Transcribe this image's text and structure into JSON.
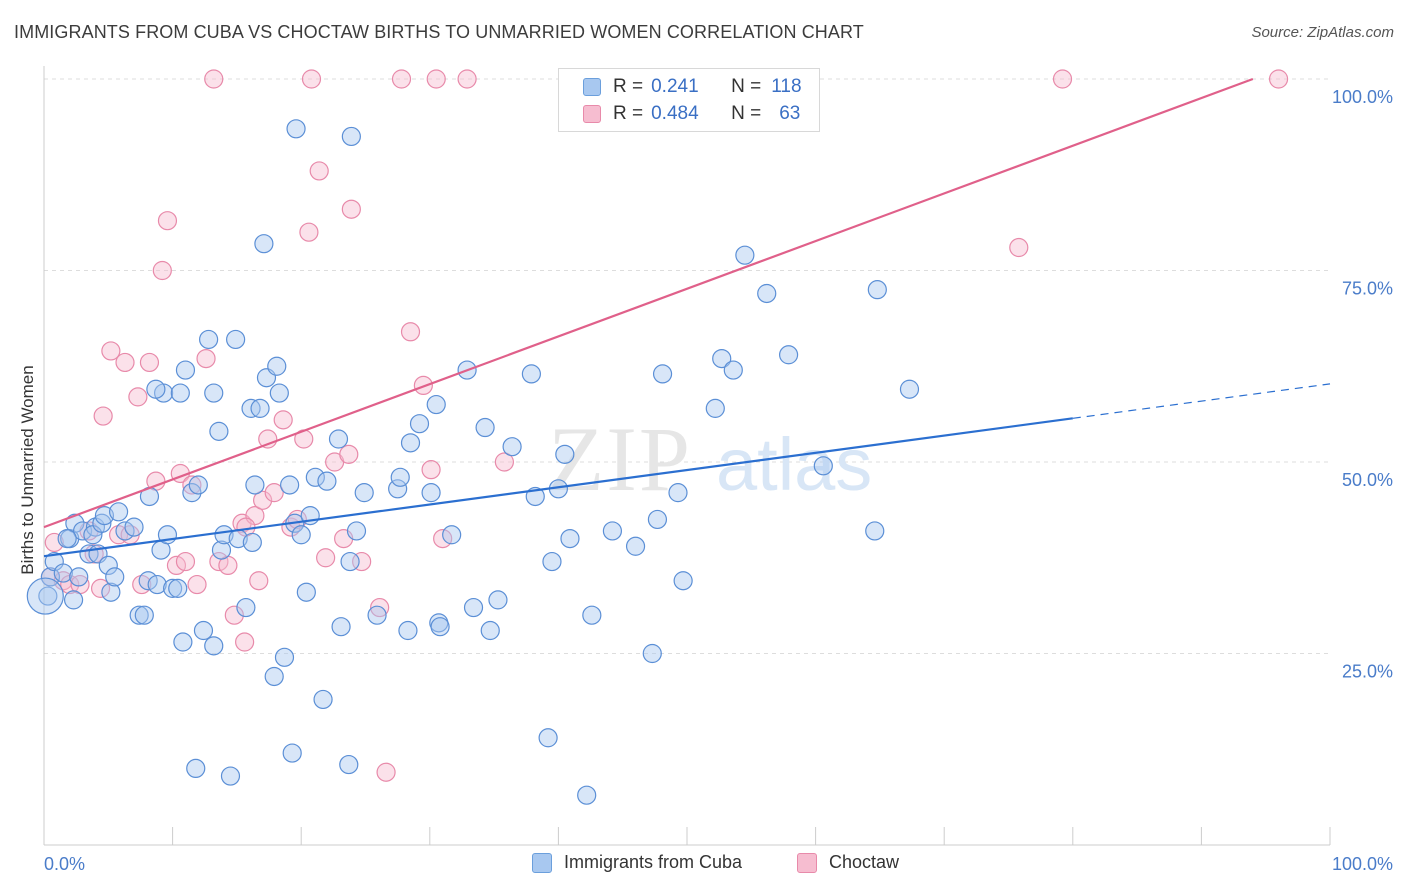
{
  "header": {
    "title": "IMMIGRANTS FROM CUBA VS CHOCTAW BIRTHS TO UNMARRIED WOMEN CORRELATION CHART",
    "source": "Source: ZipAtlas.com"
  },
  "watermark": {
    "text_zip": "ZIP",
    "text_atlas": "atlas"
  },
  "legend": {
    "r_label": "R =",
    "n_label": "N =",
    "rows": [
      {
        "r": "0.241",
        "n": "118",
        "color": "#a8c8f0",
        "border": "#6b9fdc"
      },
      {
        "r": "0.484",
        "n": "63",
        "color": "#f6bdd0",
        "border": "#e88aaa"
      }
    ]
  },
  "colors": {
    "blue_fill": "#a8c8f0",
    "blue_stroke": "#5b8fd6",
    "blue_line": "#2b6fd0",
    "pink_fill": "#f6bdd0",
    "pink_stroke": "#e88aaa",
    "pink_line": "#e0608a",
    "tick_label": "#4a7cc9",
    "grid": "#dddddd"
  },
  "chart_data": {
    "type": "scatter",
    "title": "IMMIGRANTS FROM CUBA VS CHOCTAW BIRTHS TO UNMARRIED WOMEN CORRELATION CHART",
    "xlabel": "",
    "ylabel": "Births to Unmarried Women",
    "xlim": [
      0,
      100
    ],
    "ylim": [
      0,
      100
    ],
    "x_tick_labels": [
      "0.0%",
      "100.0%"
    ],
    "y_tick_labels": [
      "25.0%",
      "50.0%",
      "75.0%",
      "100.0%"
    ],
    "y_ticks": [
      25,
      50,
      75,
      100
    ],
    "grid": true,
    "legend_position": "top-center",
    "series": [
      {
        "name": "Immigrants from Cuba",
        "r": 0.241,
        "n": 118,
        "trend": {
          "x0": 0,
          "y0": 37.7,
          "x1": 80,
          "y1": 55.7,
          "dashed_to_x": 100,
          "dashed_to_y": 60.2
        },
        "points": [
          [
            0.3,
            32.5
          ],
          [
            0.5,
            35
          ],
          [
            0.8,
            37
          ],
          [
            1.5,
            35.5
          ],
          [
            2,
            40
          ],
          [
            2.3,
            32
          ],
          [
            2.4,
            42
          ],
          [
            3,
            41
          ],
          [
            3.5,
            38
          ],
          [
            4,
            41.5
          ],
          [
            3.8,
            40.5
          ],
          [
            4.2,
            38
          ],
          [
            4.5,
            42
          ],
          [
            5,
            36.5
          ],
          [
            4.7,
            43
          ],
          [
            5.2,
            33
          ],
          [
            5.8,
            43.5
          ],
          [
            6.3,
            41
          ],
          [
            7,
            41.5
          ],
          [
            7.4,
            30
          ],
          [
            7.8,
            30
          ],
          [
            8.1,
            34.5
          ],
          [
            8.2,
            45.5
          ],
          [
            8.8,
            34
          ],
          [
            9.1,
            38.5
          ],
          [
            9.3,
            59
          ],
          [
            9.6,
            40.5
          ],
          [
            10,
            33.5
          ],
          [
            10.4,
            33.5
          ],
          [
            10.8,
            26.5
          ],
          [
            10.6,
            59
          ],
          [
            11,
            62
          ],
          [
            11.5,
            46
          ],
          [
            11.8,
            10
          ],
          [
            12,
            47
          ],
          [
            12.4,
            28
          ],
          [
            12.8,
            66
          ],
          [
            13.2,
            26
          ],
          [
            13.2,
            59
          ],
          [
            13.6,
            54
          ],
          [
            13.8,
            38.5
          ],
          [
            14,
            40.5
          ],
          [
            14.5,
            9
          ],
          [
            14.9,
            66
          ],
          [
            15.1,
            40
          ],
          [
            15.7,
            31
          ],
          [
            16.1,
            57
          ],
          [
            16.4,
            47
          ],
          [
            16.8,
            57
          ],
          [
            17.1,
            78.5
          ],
          [
            17.3,
            61
          ],
          [
            17.9,
            22
          ],
          [
            18.1,
            62.5
          ],
          [
            18.3,
            59
          ],
          [
            18.7,
            24.5
          ],
          [
            19.1,
            47
          ],
          [
            19.3,
            12
          ],
          [
            19.5,
            42
          ],
          [
            19.6,
            93.5
          ],
          [
            20,
            40.5
          ],
          [
            20.4,
            33
          ],
          [
            20.7,
            43
          ],
          [
            21.1,
            48
          ],
          [
            21.7,
            19
          ],
          [
            22,
            47.5
          ],
          [
            22.9,
            53
          ],
          [
            23.1,
            28.5
          ],
          [
            23.7,
            10.5
          ],
          [
            23.8,
            37
          ],
          [
            23.9,
            92.5
          ],
          [
            24.3,
            41
          ],
          [
            24.9,
            46
          ],
          [
            25.9,
            30
          ],
          [
            27.5,
            46.5
          ],
          [
            27.7,
            48
          ],
          [
            28.3,
            28
          ],
          [
            28.5,
            52.5
          ],
          [
            29.2,
            55
          ],
          [
            30.1,
            46
          ],
          [
            30.5,
            57.5
          ],
          [
            30.7,
            29
          ],
          [
            30.8,
            28.5
          ],
          [
            31.7,
            40.5
          ],
          [
            32.9,
            62
          ],
          [
            33.4,
            31
          ],
          [
            34.3,
            54.5
          ],
          [
            34.7,
            28
          ],
          [
            35.3,
            32
          ],
          [
            36.4,
            52
          ],
          [
            37.9,
            61.5
          ],
          [
            38.2,
            45.5
          ],
          [
            39.2,
            14
          ],
          [
            39.5,
            37
          ],
          [
            40,
            46.5
          ],
          [
            40.5,
            51
          ],
          [
            40.9,
            40
          ],
          [
            42.6,
            30
          ],
          [
            44.2,
            41
          ],
          [
            46,
            39
          ],
          [
            47.3,
            25
          ],
          [
            47.7,
            42.5
          ],
          [
            48.1,
            61.5
          ],
          [
            49.3,
            46
          ],
          [
            49.7,
            34.5
          ],
          [
            52.2,
            57
          ],
          [
            52.7,
            63.5
          ],
          [
            53.6,
            62
          ],
          [
            54.5,
            77
          ],
          [
            56.2,
            72
          ],
          [
            57.9,
            64
          ],
          [
            60.6,
            49.5
          ],
          [
            64.6,
            41
          ],
          [
            64.8,
            72.5
          ],
          [
            67.3,
            59.5
          ],
          [
            42.2,
            6.5
          ],
          [
            16.2,
            39.5
          ],
          [
            8.7,
            59.5
          ],
          [
            5.5,
            35
          ],
          [
            2.7,
            35
          ],
          [
            1.8,
            40
          ]
        ]
      },
      {
        "name": "Choctaw",
        "r": 0.484,
        "n": 63,
        "trend": {
          "x0": 0,
          "y0": 41.5,
          "x1": 94,
          "y1": 100
        },
        "points": [
          [
            0.5,
            35
          ],
          [
            0.8,
            39.5
          ],
          [
            1.5,
            34.5
          ],
          [
            2,
            34
          ],
          [
            2.8,
            34
          ],
          [
            3.5,
            41
          ],
          [
            3.9,
            38
          ],
          [
            4.4,
            33.5
          ],
          [
            4.6,
            56
          ],
          [
            5.2,
            64.5
          ],
          [
            5.8,
            40.5
          ],
          [
            6.3,
            63
          ],
          [
            6.7,
            40.5
          ],
          [
            7.3,
            58.5
          ],
          [
            7.6,
            34
          ],
          [
            8.2,
            63
          ],
          [
            8.7,
            47.5
          ],
          [
            9.2,
            75
          ],
          [
            9.6,
            81.5
          ],
          [
            10.3,
            36.5
          ],
          [
            10.6,
            48.5
          ],
          [
            11,
            37
          ],
          [
            11.5,
            47
          ],
          [
            11.9,
            34
          ],
          [
            12.6,
            63.5
          ],
          [
            13.2,
            100
          ],
          [
            13.6,
            37
          ],
          [
            14.3,
            36.5
          ],
          [
            14.8,
            30
          ],
          [
            15.4,
            42
          ],
          [
            15.6,
            26.5
          ],
          [
            16.4,
            43
          ],
          [
            16.7,
            34.5
          ],
          [
            17,
            45
          ],
          [
            17.4,
            53
          ],
          [
            17.9,
            46
          ],
          [
            18.6,
            55.5
          ],
          [
            19.2,
            41.5
          ],
          [
            19.7,
            42.5
          ],
          [
            20.2,
            53
          ],
          [
            20.6,
            80
          ],
          [
            20.8,
            100
          ],
          [
            21.4,
            88
          ],
          [
            21.9,
            37.5
          ],
          [
            22.6,
            50
          ],
          [
            23.3,
            40
          ],
          [
            23.7,
            51
          ],
          [
            23.9,
            83
          ],
          [
            24.7,
            37
          ],
          [
            26.1,
            31
          ],
          [
            26.6,
            9.5
          ],
          [
            27.8,
            100
          ],
          [
            28.5,
            67
          ],
          [
            29.5,
            60
          ],
          [
            30.1,
            49
          ],
          [
            30.5,
            100
          ],
          [
            31,
            40
          ],
          [
            32.9,
            100
          ],
          [
            35.8,
            50
          ],
          [
            75.8,
            78
          ],
          [
            79.2,
            100
          ],
          [
            96,
            100
          ],
          [
            15.7,
            41.5
          ]
        ]
      }
    ]
  },
  "bottom_legend": {
    "items": [
      {
        "label": "Immigrants from Cuba"
      },
      {
        "label": "Choctaw"
      }
    ]
  }
}
